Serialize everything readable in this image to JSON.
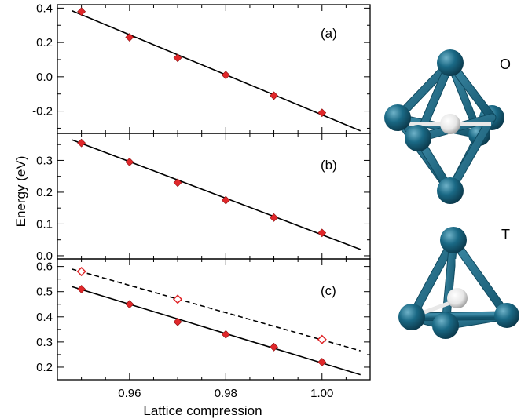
{
  "chart_data": {
    "type": "scatter",
    "xlabel": "Lattice compression",
    "ylabel": "Energy (eV)",
    "xlim": [
      0.945,
      1.01
    ],
    "x_ticks": [
      "0.96",
      "0.98",
      "1.00"
    ],
    "x_tick_values": [
      0.96,
      0.98,
      1.0
    ],
    "marker_color": "#e0272a",
    "panels": [
      {
        "label": "(a)",
        "ylim": [
          -0.33,
          0.42
        ],
        "y_ticks": [
          "0.4",
          "0.2",
          "0.0",
          "-0.2"
        ],
        "y_tick_values": [
          0.4,
          0.2,
          0.0,
          -0.2
        ],
        "series": [
          {
            "marker": "filled-diamond",
            "x": [
              0.95,
              0.96,
              0.97,
              0.98,
              0.99,
              1.0
            ],
            "y": [
              0.38,
              0.23,
              0.11,
              0.01,
              -0.11,
              -0.21
            ]
          }
        ],
        "fit_lines": [
          {
            "style": "solid",
            "x": [
              0.948,
              1.008
            ],
            "y": [
              0.385,
              -0.315
            ]
          }
        ]
      },
      {
        "label": "(b)",
        "ylim": [
          -0.01,
          0.385
        ],
        "y_ticks": [
          "0.3",
          "0.2",
          "0.1",
          "0.0"
        ],
        "y_tick_values": [
          0.3,
          0.2,
          0.1,
          0.0
        ],
        "series": [
          {
            "marker": "filled-diamond",
            "x": [
              0.95,
              0.96,
              0.97,
              0.98,
              0.99,
              1.0
            ],
            "y": [
              0.355,
              0.295,
              0.23,
              0.175,
              0.12,
              0.072
            ]
          }
        ],
        "fit_lines": [
          {
            "style": "solid",
            "x": [
              0.948,
              1.008
            ],
            "y": [
              0.365,
              0.02
            ]
          }
        ]
      },
      {
        "label": "(c)",
        "ylim": [
          0.15,
          0.63
        ],
        "y_ticks": [
          "0.6",
          "0.5",
          "0.4",
          "0.3",
          "0.2"
        ],
        "y_tick_values": [
          0.6,
          0.5,
          0.4,
          0.3,
          0.2
        ],
        "series": [
          {
            "marker": "filled-diamond",
            "x": [
              0.95,
              0.96,
              0.97,
              0.98,
              0.99,
              1.0
            ],
            "y": [
              0.51,
              0.45,
              0.38,
              0.33,
              0.28,
              0.22
            ]
          },
          {
            "marker": "open-diamond",
            "x": [
              0.95,
              0.97,
              1.0
            ],
            "y": [
              0.58,
              0.47,
              0.31
            ]
          }
        ],
        "fit_lines": [
          {
            "style": "solid",
            "x": [
              0.948,
              1.008
            ],
            "y": [
              0.52,
              0.17
            ]
          },
          {
            "style": "dashed",
            "x": [
              0.948,
              1.008
            ],
            "y": [
              0.59,
              0.265
            ]
          }
        ]
      }
    ]
  },
  "molecules": [
    {
      "label": "O",
      "shape": "octahedral",
      "atom_color": "#1a6985",
      "center_color": "#f2f2f2"
    },
    {
      "label": "T",
      "shape": "tetrahedral",
      "atom_color": "#1a6985",
      "center_color": "#f2f2f2"
    }
  ]
}
